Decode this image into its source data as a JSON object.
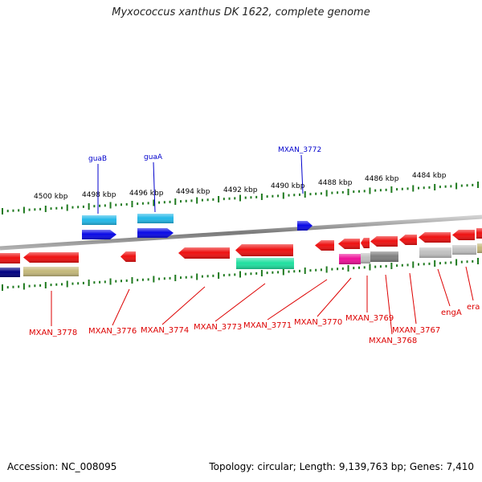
{
  "title": "Myxococcus xanthus DK 1622, complete genome",
  "footer": {
    "accession": "Accession: NC_008095",
    "summary": "Topology: circular; Length: 9,139,763 bp; Genes: 7,410"
  },
  "scale_labels": [
    "4500 kbp",
    "4498 kbp",
    "4496 kbp",
    "4494 kbp",
    "4492 kbp",
    "4490 kbp",
    "4488 kbp",
    "4486 kbp",
    "4484 kbp"
  ],
  "colors": {
    "backbone": "#8c8c8c",
    "scale_ticks": "#1f7a1f",
    "label_blue": "#0000cc",
    "label_red": "#dd0000",
    "gene_red": "#ee1111",
    "gene_blue": "#0a0ae6",
    "gene_cyan": "#22b8e8",
    "gene_green": "#20e0a0",
    "gene_magenta": "#ee1199",
    "gene_gray": "#808080",
    "gene_lightgray": "#c0c0c0",
    "gene_navy": "#000080",
    "gene_khaki": "#c4b87a"
  },
  "top_gene_labels": [
    "guaB",
    "guaA",
    "MXAN_3772"
  ],
  "bottom_gene_labels": [
    "MXAN_3778",
    "MXAN_3776",
    "MXAN_3774",
    "MXAN_3773",
    "MXAN_3771",
    "MXAN_3770",
    "MXAN_3769",
    "MXAN_3768",
    "MXAN_3767",
    "engA",
    "era"
  ]
}
